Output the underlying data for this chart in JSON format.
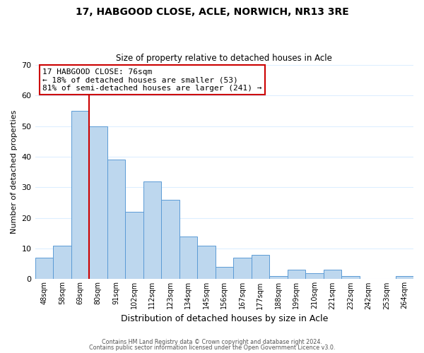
{
  "title": "17, HABGOOD CLOSE, ACLE, NORWICH, NR13 3RE",
  "subtitle": "Size of property relative to detached houses in Acle",
  "xlabel": "Distribution of detached houses by size in Acle",
  "ylabel": "Number of detached properties",
  "bar_labels": [
    "48sqm",
    "58sqm",
    "69sqm",
    "80sqm",
    "91sqm",
    "102sqm",
    "112sqm",
    "123sqm",
    "134sqm",
    "145sqm",
    "156sqm",
    "167sqm",
    "177sqm",
    "188sqm",
    "199sqm",
    "210sqm",
    "221sqm",
    "232sqm",
    "242sqm",
    "253sqm",
    "264sqm"
  ],
  "bar_values": [
    7,
    11,
    55,
    50,
    39,
    22,
    32,
    26,
    14,
    11,
    4,
    7,
    8,
    1,
    3,
    2,
    3,
    1,
    0,
    0,
    1
  ],
  "bar_color": "#bdd7ee",
  "bar_edge_color": "#5b9bd5",
  "vline_x": 3.0,
  "vline_color": "#cc0000",
  "ylim": [
    0,
    70
  ],
  "yticks": [
    0,
    10,
    20,
    30,
    40,
    50,
    60,
    70
  ],
  "annotation_title": "17 HABGOOD CLOSE: 76sqm",
  "annotation_line1": "← 18% of detached houses are smaller (53)",
  "annotation_line2": "81% of semi-detached houses are larger (241) →",
  "annotation_box_color": "#ffffff",
  "annotation_box_edge": "#cc0000",
  "footer1": "Contains HM Land Registry data © Crown copyright and database right 2024.",
  "footer2": "Contains public sector information licensed under the Open Government Licence v3.0.",
  "background_color": "#ffffff",
  "grid_color": "#ddeeff"
}
